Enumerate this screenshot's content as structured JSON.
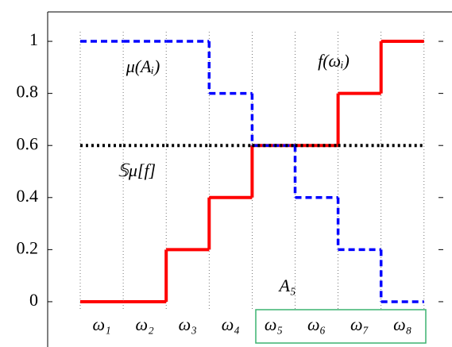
{
  "chart_data": {
    "type": "step",
    "categories": [
      "ω₁",
      "ω₂",
      "ω₃",
      "ω₄",
      "ω₅",
      "ω₆",
      "ω₇",
      "ω₈"
    ],
    "series": [
      {
        "name": "f(ωᵢ)",
        "color": "#ff0000",
        "style": "solid",
        "values": [
          0,
          0,
          0.2,
          0.4,
          0.6,
          0.6,
          0.8,
          1
        ]
      },
      {
        "name": "μ(Aᵢ)",
        "color": "#0000ff",
        "style": "dashed",
        "values": [
          1,
          1,
          1,
          0.8,
          0.6,
          0.4,
          0.2,
          0
        ]
      },
      {
        "name": "𝕊μ[f]",
        "color": "#000000",
        "style": "dotted",
        "values": [
          0.6,
          0.6,
          0.6,
          0.6,
          0.6,
          0.6,
          0.6,
          0.6
        ]
      }
    ],
    "set_label": {
      "text": "A₅",
      "color": "#3cb371"
    },
    "ylim": [
      -0.174,
      1.113
    ],
    "yticks": [
      0,
      0.2,
      0.4,
      0.6,
      0.8,
      1
    ],
    "grid": true
  }
}
